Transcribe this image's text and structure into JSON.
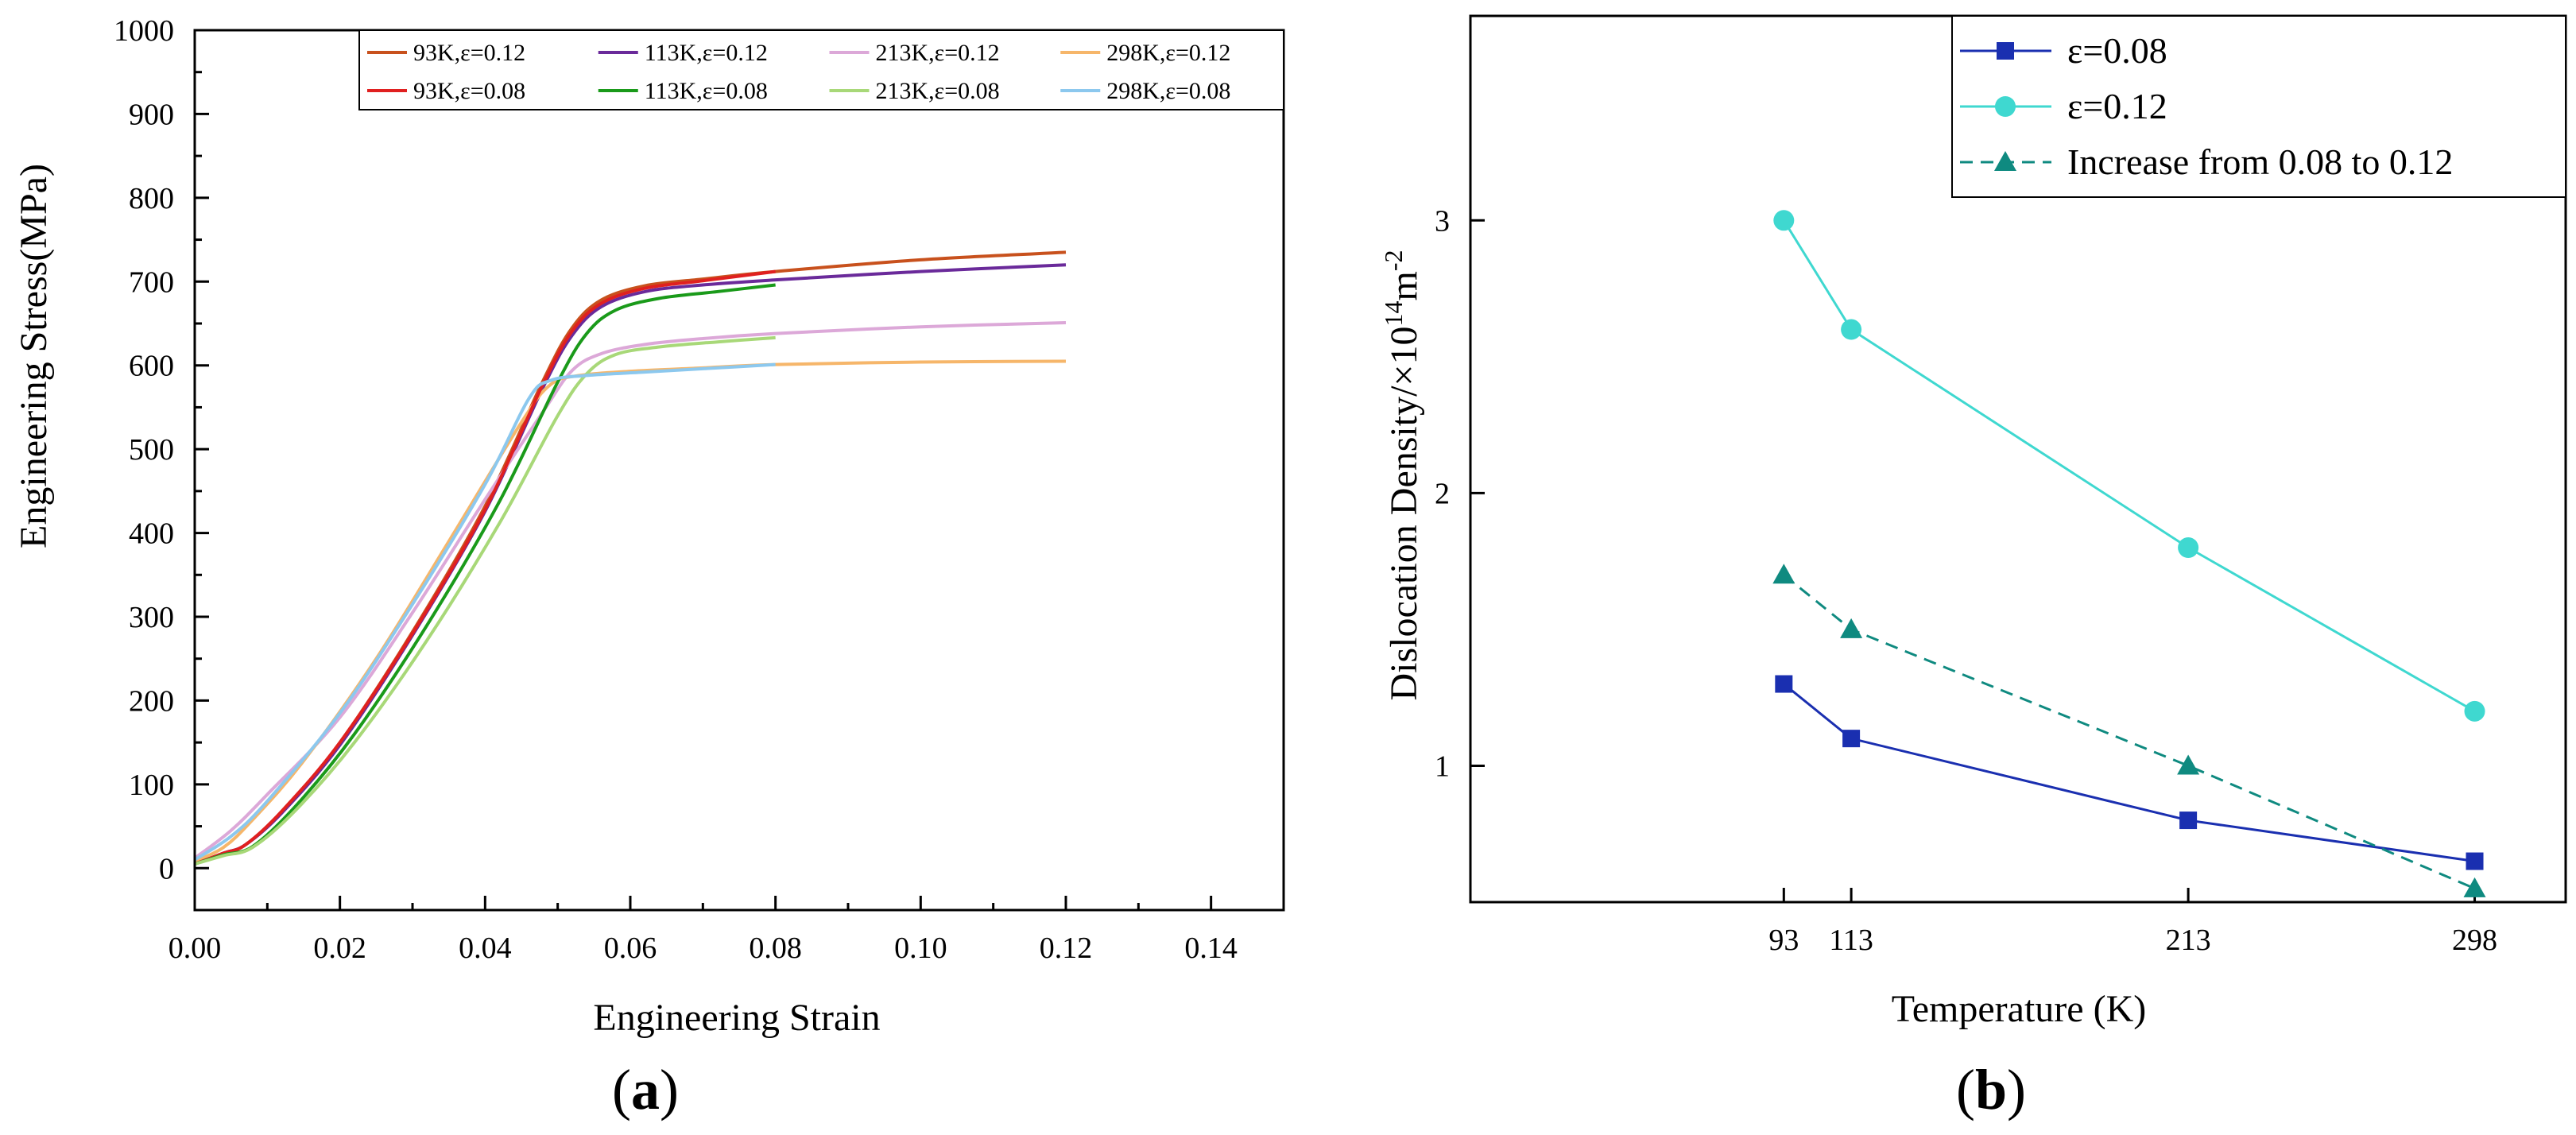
{
  "chart_data": [
    {
      "type": "line",
      "panel_label_text": "(a)",
      "xlabel": "Engineering Strain",
      "ylabel": "Engineering Stress(MPa)",
      "xlim": [
        0,
        0.15
      ],
      "ylim": [
        -50,
        1000
      ],
      "xticks": [
        "0.00",
        "0.02",
        "0.04",
        "0.06",
        "0.08",
        "0.10",
        "0.12",
        "0.14"
      ],
      "yticks": [
        "0",
        "100",
        "200",
        "300",
        "400",
        "500",
        "600",
        "700",
        "800",
        "900",
        "1000"
      ],
      "xtick_values": [
        0,
        0.02,
        0.04,
        0.06,
        0.08,
        0.1,
        0.12,
        0.14
      ],
      "ytick_values": [
        0,
        100,
        200,
        300,
        400,
        500,
        600,
        700,
        800,
        900,
        1000
      ],
      "legend_position": "top-right",
      "series": [
        {
          "name": "93K,ε=0.12",
          "color": "#c8511d",
          "points": [
            [
              0,
              5
            ],
            [
              0.004,
              18
            ],
            [
              0.007,
              28
            ],
            [
              0.012,
              68
            ],
            [
              0.02,
              150
            ],
            [
              0.03,
              282
            ],
            [
              0.04,
              432
            ],
            [
              0.048,
              582
            ],
            [
              0.052,
              645
            ],
            [
              0.056,
              678
            ],
            [
              0.062,
              695
            ],
            [
              0.07,
              703
            ],
            [
              0.08,
              712
            ],
            [
              0.1,
              726
            ],
            [
              0.12,
              735
            ]
          ]
        },
        {
          "name": "113K,ε=0.12",
          "color": "#6a2a9a",
          "points": [
            [
              0,
              5
            ],
            [
              0.004,
              18
            ],
            [
              0.007,
              28
            ],
            [
              0.012,
              66
            ],
            [
              0.02,
              147
            ],
            [
              0.03,
              278
            ],
            [
              0.04,
              426
            ],
            [
              0.048,
              574
            ],
            [
              0.052,
              636
            ],
            [
              0.056,
              670
            ],
            [
              0.062,
              688
            ],
            [
              0.07,
              696
            ],
            [
              0.08,
              702
            ],
            [
              0.1,
              712
            ],
            [
              0.12,
              720
            ]
          ]
        },
        {
          "name": "213K,ε=0.12",
          "color": "#dca8d8",
          "points": [
            [
              0,
              12
            ],
            [
              0.005,
              45
            ],
            [
              0.01,
              88
            ],
            [
              0.02,
              180
            ],
            [
              0.03,
              305
            ],
            [
              0.04,
              440
            ],
            [
              0.048,
              545
            ],
            [
              0.052,
              594
            ],
            [
              0.056,
              614
            ],
            [
              0.062,
              625
            ],
            [
              0.07,
              632
            ],
            [
              0.08,
              638
            ],
            [
              0.1,
              646
            ],
            [
              0.12,
              651
            ]
          ]
        },
        {
          "name": "298K,ε=0.12",
          "color": "#f6b66a",
          "points": [
            [
              0,
              8
            ],
            [
              0.004,
              25
            ],
            [
              0.008,
              58
            ],
            [
              0.015,
              128
            ],
            [
              0.025,
              250
            ],
            [
              0.035,
              390
            ],
            [
              0.045,
              532
            ],
            [
              0.049,
              577
            ],
            [
              0.053,
              588
            ],
            [
              0.06,
              593
            ],
            [
              0.07,
              597
            ],
            [
              0.08,
              601
            ],
            [
              0.1,
              604
            ],
            [
              0.12,
              605
            ]
          ]
        },
        {
          "name": "93K,ε=0.08",
          "color": "#e02020",
          "points": [
            [
              0,
              5
            ],
            [
              0.004,
              18
            ],
            [
              0.007,
              28
            ],
            [
              0.012,
              68
            ],
            [
              0.02,
              150
            ],
            [
              0.03,
              280
            ],
            [
              0.04,
              428
            ],
            [
              0.048,
              578
            ],
            [
              0.052,
              641
            ],
            [
              0.056,
              674
            ],
            [
              0.062,
              692
            ],
            [
              0.07,
              701
            ],
            [
              0.08,
              712
            ]
          ]
        },
        {
          "name": "113K,ε=0.08",
          "color": "#1a9a1a",
          "points": [
            [
              0,
              5
            ],
            [
              0.004,
              16
            ],
            [
              0.008,
              26
            ],
            [
              0.014,
              75
            ],
            [
              0.022,
              160
            ],
            [
              0.032,
              290
            ],
            [
              0.042,
              438
            ],
            [
              0.05,
              580
            ],
            [
              0.054,
              638
            ],
            [
              0.058,
              666
            ],
            [
              0.064,
              680
            ],
            [
              0.072,
              688
            ],
            [
              0.08,
              696
            ]
          ]
        },
        {
          "name": "213K,ε=0.08",
          "color": "#a8d878",
          "points": [
            [
              0,
              5
            ],
            [
              0.004,
              15
            ],
            [
              0.008,
              25
            ],
            [
              0.014,
              70
            ],
            [
              0.022,
              150
            ],
            [
              0.032,
              272
            ],
            [
              0.042,
              412
            ],
            [
              0.05,
              540
            ],
            [
              0.054,
              590
            ],
            [
              0.058,
              613
            ],
            [
              0.064,
              622
            ],
            [
              0.072,
              628
            ],
            [
              0.08,
              633
            ]
          ]
        },
        {
          "name": "298K,ε=0.08",
          "color": "#8cc8ee",
          "points": [
            [
              0,
              10
            ],
            [
              0.005,
              38
            ],
            [
              0.01,
              80
            ],
            [
              0.02,
              185
            ],
            [
              0.03,
              315
            ],
            [
              0.04,
              458
            ],
            [
              0.046,
              560
            ],
            [
              0.049,
              582
            ],
            [
              0.054,
              588
            ],
            [
              0.062,
              592
            ],
            [
              0.07,
              596
            ],
            [
              0.08,
              601
            ]
          ]
        }
      ]
    },
    {
      "type": "line",
      "panel_label_text": "(b)",
      "xlabel": "Temperature (K)",
      "ylabel_main": "Dislocation Density/×10",
      "ylabel_exp": "14",
      "ylabel_unit": "m",
      "ylabel_unit_exp": "-2",
      "x": [
        93,
        113,
        213,
        298
      ],
      "xticks": [
        "93",
        "113",
        "213",
        "298"
      ],
      "xlim": [
        0,
        325
      ],
      "ylim": [
        0.5,
        3.75
      ],
      "yticks": [
        "1",
        "2",
        "3"
      ],
      "ytick_values": [
        1,
        2,
        3
      ],
      "legend_position": "top-right",
      "series": [
        {
          "name": "ε=0.08",
          "color": "#1a2fb0",
          "marker": "square",
          "dash": false,
          "values": [
            1.3,
            1.1,
            0.8,
            0.65
          ]
        },
        {
          "name": "ε=0.12",
          "color": "#3fd8d0",
          "marker": "circle",
          "dash": false,
          "values": [
            3.0,
            2.6,
            1.8,
            1.2
          ]
        },
        {
          "name": "Increase from 0.08 to 0.12",
          "color": "#0f8a80",
          "marker": "triangle",
          "dash": true,
          "values": [
            1.7,
            1.5,
            1.0,
            0.55
          ]
        }
      ]
    }
  ]
}
